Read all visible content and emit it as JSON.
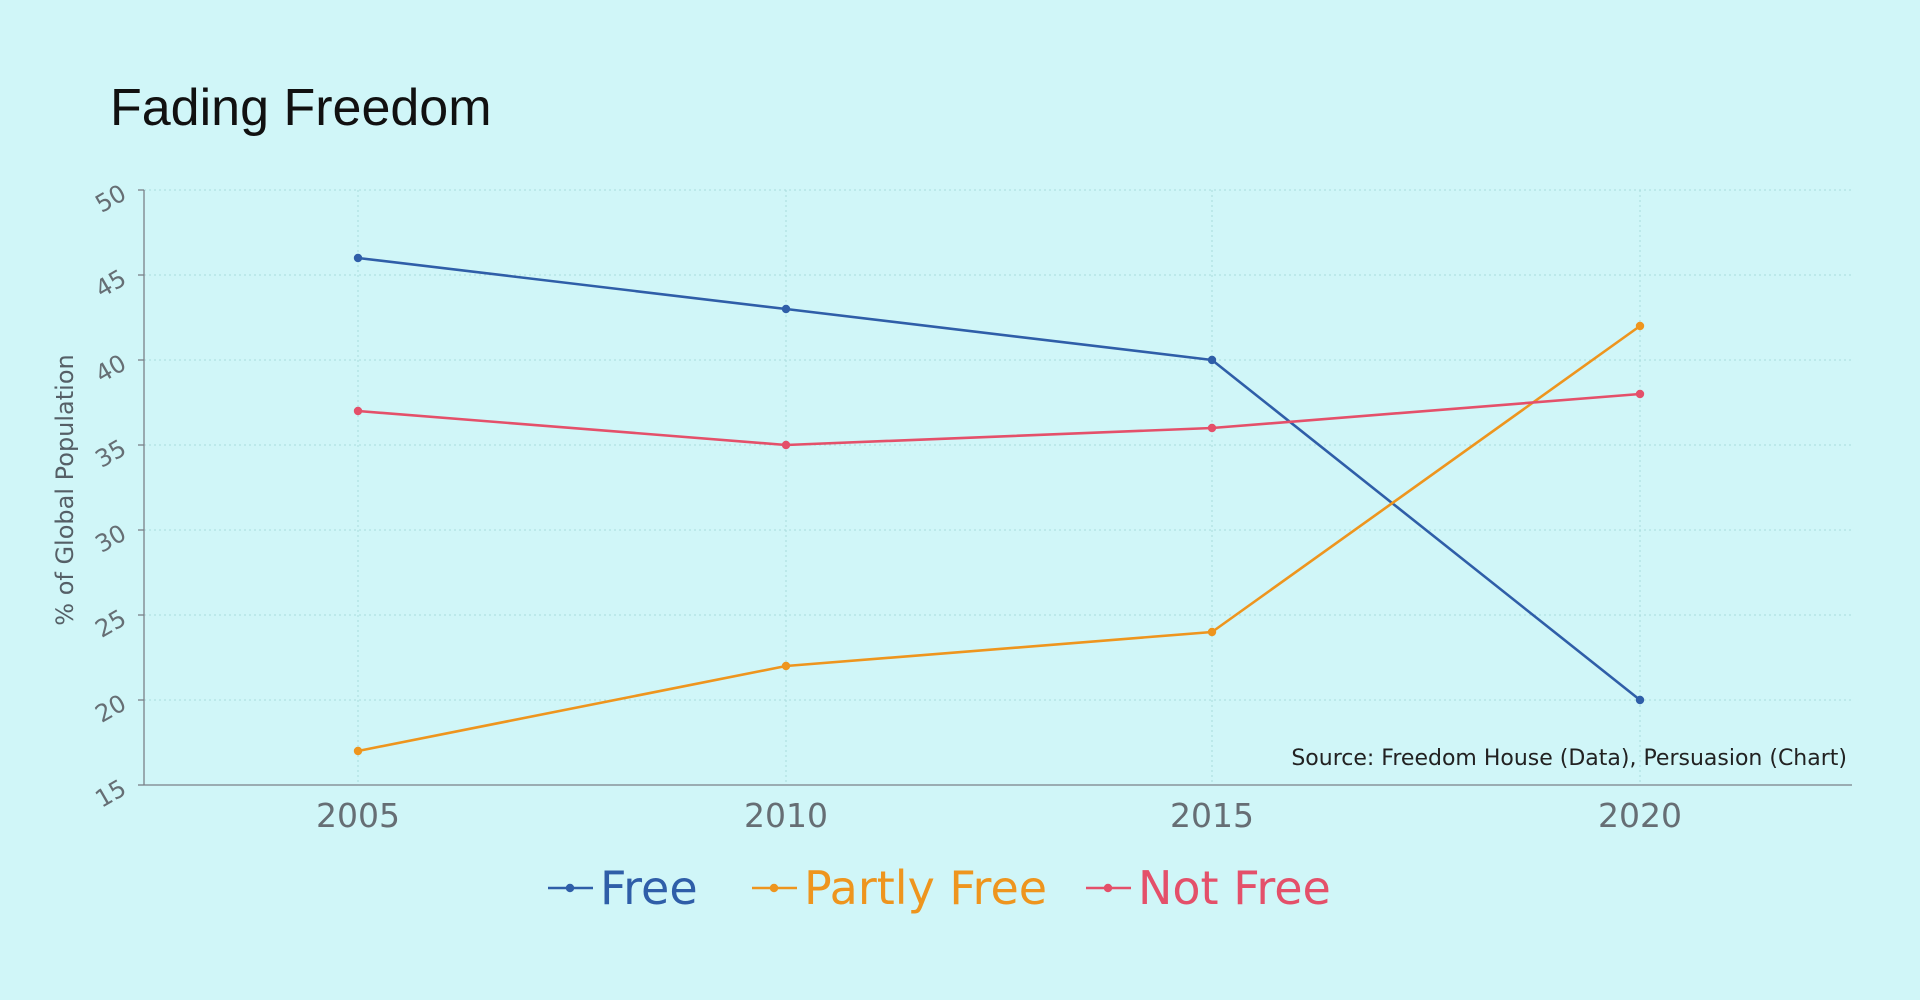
{
  "chart_data": {
    "type": "line",
    "title": "Fading Freedom",
    "xlabel": "",
    "ylabel": "% of Global Population",
    "x": [
      2005,
      2010,
      2015,
      2020
    ],
    "xticks": [
      "2005",
      "2010",
      "2015",
      "2020"
    ],
    "ylim": [
      15,
      50
    ],
    "yticks": [
      "15",
      "20",
      "25",
      "30",
      "35",
      "40",
      "45",
      "50"
    ],
    "series": [
      {
        "name": "Free",
        "color": "#2f5ea8",
        "values": [
          46,
          43,
          40,
          20
        ]
      },
      {
        "name": "Partly Free",
        "color": "#ee951e",
        "values": [
          17,
          22,
          24,
          42
        ]
      },
      {
        "name": "Not Free",
        "color": "#e4506a",
        "values": [
          37,
          35,
          36,
          38
        ]
      }
    ],
    "annotation": "Source: Freedom House (Data), Persuasion (Chart)",
    "grid": true,
    "legend": "bottom"
  }
}
